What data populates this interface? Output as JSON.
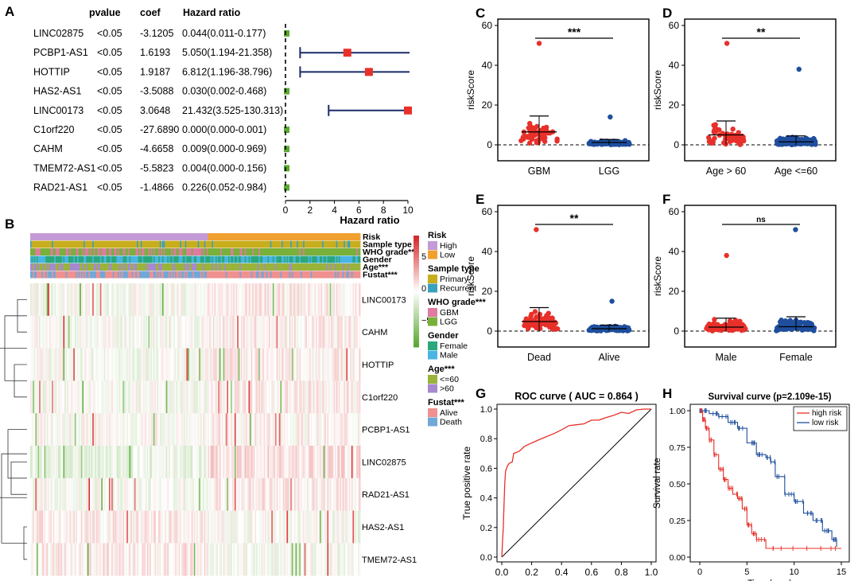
{
  "colors": {
    "red": "#e8302a",
    "blue": "#1f4e9c",
    "forest_axis": "#1b2a6b",
    "risk_high": "#c49ad6",
    "risk_low": "#f0a030",
    "primary": "#c8ae1c",
    "recurrent": "#3aa0c0",
    "gbm": "#e07aa0",
    "lgg": "#78b03a",
    "female": "#2aa87c",
    "male": "#4ab4e4",
    "age_le60": "#9ab33a",
    "age_gt60": "#a888d0",
    "alive": "#f09090",
    "death": "#70a8d8",
    "heat_high": "#d62828",
    "heat_mid": "#ffffff",
    "heat_low": "#5aa832"
  },
  "panel_labels": {
    "A": "A",
    "B": "B",
    "C": "C",
    "D": "D",
    "E": "E",
    "F": "F",
    "G": "G",
    "H": "H"
  },
  "chart_data": [
    {
      "panel": "A",
      "type": "forest",
      "headers": {
        "pvalue": "pvalue",
        "coef": "coef",
        "hr": "Hazard ratio"
      },
      "xlabel": "Hazard ratio",
      "xlim": [
        0,
        10
      ],
      "xticks": [
        "0",
        "2",
        "4",
        "6",
        "8",
        "10"
      ],
      "rows": [
        {
          "gene": "LINC02875",
          "pvalue": "<0.05",
          "coef": "-3.1205",
          "hr_text": "0.044(0.011-0.177)",
          "hr": 0.044,
          "lo": 0.011,
          "hi": 0.177
        },
        {
          "gene": "PCBP1-AS1",
          "pvalue": "<0.05",
          "coef": "1.6193",
          "hr_text": "5.050(1.194-21.358)",
          "hr": 5.05,
          "lo": 1.194,
          "hi": 21.358
        },
        {
          "gene": "HOTTIP",
          "pvalue": "<0.05",
          "coef": "1.9187",
          "hr_text": "6.812(1.196-38.796)",
          "hr": 6.812,
          "lo": 1.196,
          "hi": 38.796
        },
        {
          "gene": "HAS2-AS1",
          "pvalue": "<0.05",
          "coef": "-3.5088",
          "hr_text": "0.030(0.002-0.468)",
          "hr": 0.03,
          "lo": 0.002,
          "hi": 0.468
        },
        {
          "gene": "LINC00173",
          "pvalue": "<0.05",
          "coef": "3.0648",
          "hr_text": "21.432(3.525-130.313)",
          "hr": 21.432,
          "lo": 3.525,
          "hi": 130.313
        },
        {
          "gene": "C1orf220",
          "pvalue": "<0.05",
          "coef": "-27.6890",
          "hr_text": "0.000(0.000-0.001)",
          "hr": 0.0,
          "lo": 0.0,
          "hi": 0.001
        },
        {
          "gene": "CAHM",
          "pvalue": "<0.05",
          "coef": "-4.6658",
          "hr_text": "0.009(0.000-0.969)",
          "hr": 0.009,
          "lo": 0.0,
          "hi": 0.969
        },
        {
          "gene": "TMEM72-AS1",
          "pvalue": "<0.05",
          "coef": "-5.5823",
          "hr_text": "0.004(0.000-0.156)",
          "hr": 0.004,
          "lo": 0.0,
          "hi": 0.156
        },
        {
          "gene": "RAD21-AS1",
          "pvalue": "<0.05",
          "coef": "-1.4866",
          "hr_text": "0.226(0.052-0.984)",
          "hr": 0.226,
          "lo": 0.052,
          "hi": 0.984
        }
      ]
    },
    {
      "panel": "B",
      "type": "heatmap",
      "annotation_tracks": [
        "Risk",
        "Sample type",
        "WHO grade***",
        "Gender",
        "Age***",
        "Fustat***"
      ],
      "rows": [
        "LINC00173",
        "CAHM",
        "HOTTIP",
        "C1orf220",
        "PCBP1-AS1",
        "LINC02875",
        "RAD21-AS1",
        "HAS2-AS1",
        "TMEM72-AS1"
      ],
      "color_scale": {
        "ticks": [
          "5",
          "0",
          "−5"
        ],
        "range": [
          -5,
          5
        ]
      },
      "legend": [
        {
          "title": "Risk",
          "items": [
            "High",
            "Low"
          ]
        },
        {
          "title": "Sample type",
          "items": [
            "Primary",
            "Recurrent"
          ]
        },
        {
          "title": "WHO grade***",
          "items": [
            "GBM",
            "LGG"
          ]
        },
        {
          "title": "Gender",
          "items": [
            "Female",
            "Male"
          ]
        },
        {
          "title": "Age***",
          "items": [
            "<=60",
            ">60"
          ]
        },
        {
          "title": "Fustat***",
          "items": [
            "Alive",
            "Death"
          ]
        }
      ]
    },
    {
      "panel": "C",
      "type": "scatter",
      "ylabel": "riskScore",
      "ylim": [
        0,
        60
      ],
      "yticks": [
        "0",
        "20",
        "40",
        "60"
      ],
      "categories": [
        "GBM",
        "LGG"
      ],
      "significance": "***",
      "groups": [
        {
          "mean": 6.5,
          "sd": 8.0,
          "max": 51,
          "n": 60
        },
        {
          "mean": 1.2,
          "sd": 1.5,
          "max": 14,
          "n": 160
        }
      ]
    },
    {
      "panel": "D",
      "type": "scatter",
      "ylabel": "riskScore",
      "ylim": [
        0,
        60
      ],
      "yticks": [
        "0",
        "20",
        "40",
        "60"
      ],
      "categories": [
        "Age > 60",
        "Age <=60"
      ],
      "significance": "**",
      "groups": [
        {
          "mean": 5.0,
          "sd": 7.0,
          "max": 51,
          "n": 60
        },
        {
          "mean": 1.5,
          "sd": 3.0,
          "max": 38,
          "n": 160
        }
      ]
    },
    {
      "panel": "E",
      "type": "scatter",
      "ylabel": "riskScore",
      "ylim": [
        0,
        60
      ],
      "yticks": [
        "0",
        "20",
        "40",
        "60"
      ],
      "categories": [
        "Dead",
        "Alive"
      ],
      "significance": "**",
      "groups": [
        {
          "mean": 4.8,
          "sd": 7.0,
          "max": 51,
          "n": 70
        },
        {
          "mean": 1.2,
          "sd": 1.8,
          "max": 15,
          "n": 150
        }
      ]
    },
    {
      "panel": "F",
      "type": "scatter",
      "ylabel": "riskScore",
      "ylim": [
        0,
        60
      ],
      "yticks": [
        "0",
        "20",
        "40",
        "60"
      ],
      "categories": [
        "Male",
        "Female"
      ],
      "significance": "ns",
      "groups": [
        {
          "mean": 2.0,
          "sd": 4.5,
          "max": 38,
          "n": 120
        },
        {
          "mean": 2.2,
          "sd": 5.0,
          "max": 51,
          "n": 100
        }
      ]
    },
    {
      "panel": "G",
      "type": "line",
      "title": "ROC curve ( AUC =  0.864 )",
      "xlabel": "False positive rate",
      "ylabel": "True positive rate",
      "xlim": [
        0,
        1
      ],
      "ylim": [
        0,
        1
      ],
      "xticks": [
        "0.0",
        "0.2",
        "0.4",
        "0.6",
        "0.8",
        "1.0"
      ],
      "yticks": [
        "0.0",
        "0.2",
        "0.4",
        "0.6",
        "0.8",
        "1.0"
      ],
      "auc": 0.864,
      "curve": [
        [
          0,
          0
        ],
        [
          0.005,
          0.1
        ],
        [
          0.01,
          0.2
        ],
        [
          0.015,
          0.35
        ],
        [
          0.02,
          0.5
        ],
        [
          0.025,
          0.58
        ],
        [
          0.03,
          0.6
        ],
        [
          0.04,
          0.63
        ],
        [
          0.05,
          0.64
        ],
        [
          0.07,
          0.65
        ],
        [
          0.08,
          0.7
        ],
        [
          0.1,
          0.7
        ],
        [
          0.12,
          0.72
        ],
        [
          0.15,
          0.75
        ],
        [
          0.2,
          0.78
        ],
        [
          0.25,
          0.8
        ],
        [
          0.3,
          0.82
        ],
        [
          0.35,
          0.84
        ],
        [
          0.4,
          0.86
        ],
        [
          0.45,
          0.88
        ],
        [
          0.5,
          0.89
        ],
        [
          0.55,
          0.9
        ],
        [
          0.6,
          0.92
        ],
        [
          0.65,
          0.93
        ],
        [
          0.7,
          0.94
        ],
        [
          0.75,
          0.95
        ],
        [
          0.8,
          0.97
        ],
        [
          0.85,
          0.98
        ],
        [
          0.9,
          0.99
        ],
        [
          0.95,
          1.0
        ],
        [
          1.0,
          1.0
        ]
      ]
    },
    {
      "panel": "H",
      "type": "line",
      "title": "Survival curve (p=2.109e-15)",
      "xlabel": "Time (year)",
      "ylabel": "Survival rate",
      "xlim": [
        0,
        15
      ],
      "ylim": [
        0,
        1
      ],
      "xticks": [
        "0",
        "5",
        "10",
        "15"
      ],
      "yticks": [
        "0.00",
        "0.25",
        "0.50",
        "0.75",
        "1.00"
      ],
      "series": [
        {
          "name": "high risk",
          "points": [
            [
              0,
              1.0
            ],
            [
              0.3,
              0.94
            ],
            [
              0.6,
              0.88
            ],
            [
              1,
              0.8
            ],
            [
              1.5,
              0.7
            ],
            [
              2,
              0.6
            ],
            [
              2.5,
              0.53
            ],
            [
              3,
              0.47
            ],
            [
              3.5,
              0.43
            ],
            [
              4,
              0.4
            ],
            [
              4.5,
              0.33
            ],
            [
              5,
              0.22
            ],
            [
              5.5,
              0.16
            ],
            [
              6,
              0.12
            ],
            [
              7,
              0.06
            ],
            [
              10,
              0.06
            ],
            [
              15,
              0.06
            ]
          ]
        },
        {
          "name": "low risk",
          "points": [
            [
              0,
              1.0
            ],
            [
              1,
              0.98
            ],
            [
              2,
              0.96
            ],
            [
              3,
              0.92
            ],
            [
              4,
              0.88
            ],
            [
              5,
              0.78
            ],
            [
              6,
              0.7
            ],
            [
              7,
              0.68
            ],
            [
              7.5,
              0.65
            ],
            [
              8,
              0.55
            ],
            [
              9,
              0.43
            ],
            [
              10,
              0.38
            ],
            [
              11,
              0.3
            ],
            [
              12,
              0.25
            ],
            [
              13,
              0.18
            ],
            [
              14,
              0.12
            ],
            [
              14.5,
              0.07
            ]
          ]
        }
      ]
    }
  ]
}
